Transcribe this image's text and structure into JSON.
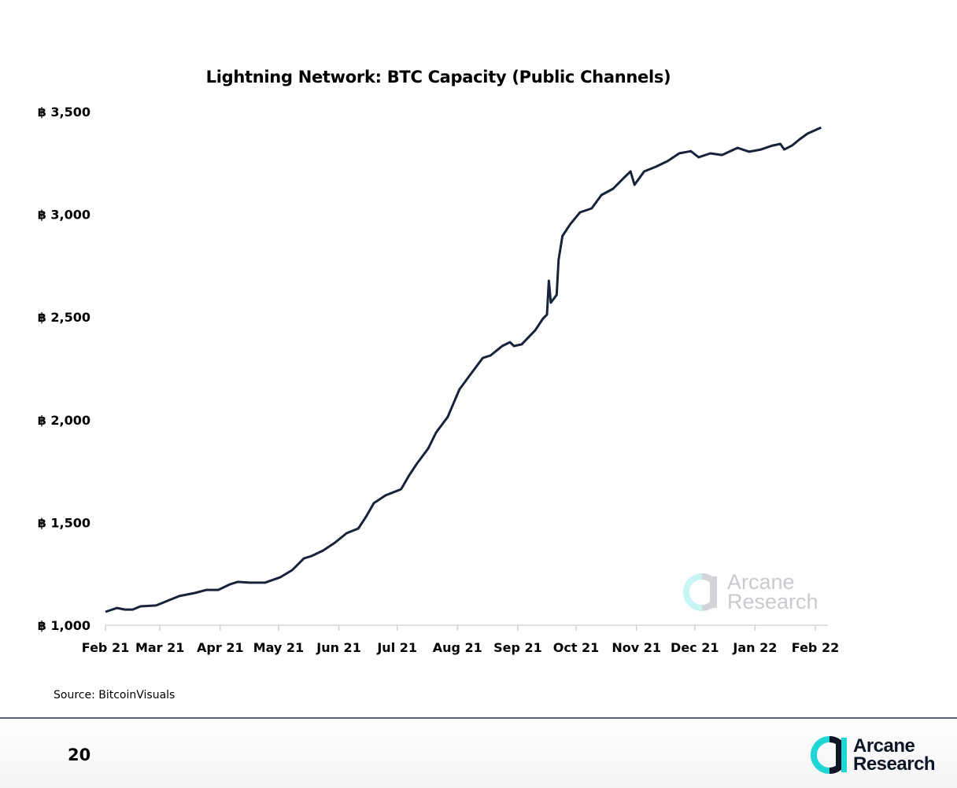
{
  "chart_data": {
    "type": "line",
    "title": "Lightning Network: BTC Capacity (Public Channels)",
    "xlabel": "",
    "ylabel": "",
    "ylim": [
      1000,
      3500
    ],
    "y_ticks": [
      "฿ 1,000",
      "฿ 1,500",
      "฿ 2,000",
      "฿ 2,500",
      "฿ 3,000",
      "฿ 3,500"
    ],
    "y_tick_values": [
      1000,
      1500,
      2000,
      2500,
      3000,
      3500
    ],
    "x_ticks": [
      "Feb 21",
      "Mar 21",
      "Apr 21",
      "May 21",
      "Jun 21",
      "Jul 21",
      "Aug 21",
      "Sep 21",
      "Oct 21",
      "Nov 21",
      "Dec 21",
      "Jan 22",
      "Feb 22"
    ],
    "x_tick_dates": [
      "2021-02-01",
      "2021-03-01",
      "2021-04-01",
      "2021-05-01",
      "2021-06-01",
      "2021-07-01",
      "2021-08-01",
      "2021-09-01",
      "2021-10-01",
      "2021-11-01",
      "2021-12-01",
      "2022-01-01",
      "2022-02-01"
    ],
    "grid": false,
    "line_color": "#17233a",
    "series": [
      {
        "x": [
          "2021-02-01",
          "2021-02-07",
          "2021-02-11",
          "2021-02-15",
          "2021-02-19",
          "2021-02-27",
          "2021-03-05",
          "2021-03-11",
          "2021-03-19",
          "2021-03-25",
          "2021-03-31",
          "2021-04-06",
          "2021-04-10",
          "2021-04-16",
          "2021-04-24",
          "2021-05-02",
          "2021-05-08",
          "2021-05-14",
          "2021-05-18",
          "2021-05-24",
          "2021-05-30",
          "2021-06-05",
          "2021-06-11",
          "2021-06-15",
          "2021-06-19",
          "2021-06-25",
          "2021-07-03",
          "2021-07-07",
          "2021-07-11",
          "2021-07-17",
          "2021-07-21",
          "2021-07-27",
          "2021-08-02",
          "2021-08-08",
          "2021-08-14",
          "2021-08-18",
          "2021-08-24",
          "2021-08-28",
          "2021-08-30",
          "2021-09-03",
          "2021-09-10",
          "2021-09-14",
          "2021-09-16",
          "2021-09-17",
          "2021-09-18",
          "2021-09-21",
          "2021-09-22",
          "2021-09-24",
          "2021-09-28",
          "2021-10-03",
          "2021-10-09",
          "2021-10-14",
          "2021-10-20",
          "2021-10-26",
          "2021-10-29",
          "2021-10-31",
          "2021-11-05",
          "2021-11-11",
          "2021-11-17",
          "2021-11-23",
          "2021-11-29",
          "2021-12-03",
          "2021-12-09",
          "2021-12-15",
          "2021-12-23",
          "2021-12-29",
          "2022-01-04",
          "2022-01-10",
          "2022-01-14",
          "2022-01-16",
          "2022-01-20",
          "2022-01-24",
          "2022-01-28",
          "2022-02-04"
        ],
        "y": [
          1065,
          1084,
          1076,
          1076,
          1092,
          1096,
          1119,
          1142,
          1157,
          1172,
          1172,
          1199,
          1211,
          1207,
          1207,
          1234,
          1268,
          1325,
          1337,
          1364,
          1402,
          1448,
          1471,
          1528,
          1594,
          1632,
          1662,
          1727,
          1785,
          1861,
          1938,
          2014,
          2148,
          2225,
          2301,
          2313,
          2359,
          2378,
          2359,
          2367,
          2436,
          2493,
          2512,
          2677,
          2570,
          2608,
          2780,
          2895,
          2952,
          3010,
          3029,
          3094,
          3125,
          3182,
          3209,
          3144,
          3209,
          3232,
          3259,
          3297,
          3308,
          3278,
          3297,
          3289,
          3324,
          3305,
          3316,
          3335,
          3343,
          3316,
          3335,
          3366,
          3393,
          3423
        ]
      }
    ]
  },
  "source": "Source: BitcoinVisuals",
  "page_number": "20",
  "logo": {
    "line1": "Arcane",
    "line2": "Research"
  },
  "watermark": {
    "line1": "Arcane",
    "line2": "Research"
  },
  "colors": {
    "brand_cyan": "#1fd6d6",
    "brand_dark": "#0d1526",
    "axis": "#d0d0d0"
  }
}
